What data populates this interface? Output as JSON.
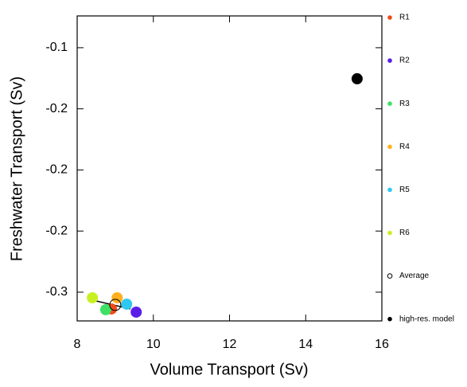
{
  "chart_data": {
    "type": "scatter",
    "x_label": "Volume Transport (Sv)",
    "y_label": "Freshwater Transport (Sv)",
    "xlim": [
      8,
      16
    ],
    "xticks": [
      8,
      10,
      12,
      14,
      16
    ],
    "ylim": [
      -0.3235,
      -0.074
    ],
    "yticks": [
      -0.1,
      {
        "value": -0.15,
        "label": "-0.2"
      },
      -0.2,
      {
        "value": -0.25,
        "label": "-0.2"
      },
      -0.3
    ],
    "series": [
      {
        "name": "R1",
        "color": "#f04a1a",
        "x": [
          8.9
        ],
        "values": [
          -0.3137
        ]
      },
      {
        "name": "R2",
        "color": "#5a1ee8",
        "x": [
          9.55
        ],
        "values": [
          -0.3163
        ]
      },
      {
        "name": "R3",
        "color": "#3ee066",
        "x": [
          8.75
        ],
        "values": [
          -0.3143
        ]
      },
      {
        "name": "R4",
        "color": "#ffb020",
        "x": [
          9.05
        ],
        "values": [
          -0.3046
        ]
      },
      {
        "name": "R5",
        "color": "#30c8f0",
        "x": [
          9.3
        ],
        "values": [
          -0.3098
        ]
      },
      {
        "name": "R6",
        "color": "#c8f020",
        "x": [
          8.4
        ],
        "values": [
          -0.3046
        ]
      },
      {
        "name": "Average",
        "color": "#000000",
        "open": true,
        "x": [
          9.0
        ],
        "values": [
          -0.3104
        ]
      },
      {
        "name": "high-res. model",
        "color": "#000000",
        "x": [
          15.35
        ],
        "values": [
          -0.1254
        ]
      }
    ],
    "line": {
      "x": [
        8.4,
        9.4
      ],
      "values": [
        -0.3065,
        -0.3137
      ]
    }
  }
}
